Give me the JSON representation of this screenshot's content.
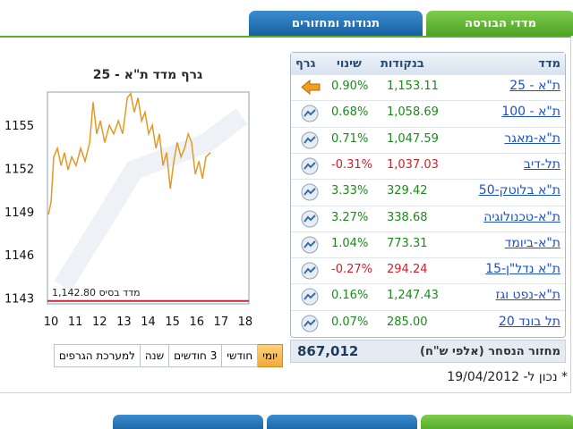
{
  "tabs": [
    "מדדי הבורסה",
    "תנודות ומחזורים"
  ],
  "chart": {
    "title": "גרף מדד ת\"א - 25",
    "yticks": [
      1155,
      1152,
      1149,
      1146,
      1143
    ],
    "ylim": [
      1142.6,
      1157.3
    ],
    "xticks": [
      10,
      11,
      12,
      13,
      14,
      15,
      16,
      17,
      18
    ],
    "xlim": [
      9.85,
      18.15
    ],
    "x": [
      9.89,
      10.0,
      10.11,
      10.26,
      10.41,
      10.55,
      10.7,
      10.85,
      11.03,
      11.22,
      11.4,
      11.59,
      11.73,
      11.88,
      12.03,
      12.21,
      12.4,
      12.58,
      12.77,
      12.95,
      13.14,
      13.28,
      13.43,
      13.58,
      13.73,
      13.87,
      14.02,
      14.17,
      14.32,
      14.46,
      14.61,
      14.76,
      14.91,
      15.06,
      15.2,
      15.35,
      15.5,
      15.65,
      15.79,
      15.94,
      16.09,
      16.24,
      16.38,
      16.57
    ],
    "values": [
      1148.8,
      1149.7,
      1152.8,
      1153.4,
      1152.2,
      1153.1,
      1151.9,
      1152.8,
      1152.2,
      1153.4,
      1152.5,
      1153.8,
      1156.6,
      1154.4,
      1155.3,
      1153.8,
      1155.0,
      1154.4,
      1155.3,
      1154.4,
      1156.9,
      1157.2,
      1155.9,
      1156.9,
      1155.3,
      1155.9,
      1154.4,
      1155.0,
      1153.4,
      1154.4,
      1152.2,
      1153.1,
      1150.6,
      1152.5,
      1153.8,
      1152.8,
      1153.4,
      1154.4,
      1153.8,
      1151.6,
      1152.5,
      1151.3,
      1152.8,
      1153.1
    ],
    "color": "#e39a22",
    "base": {
      "label": "מדד בסיס",
      "value": 1142.8,
      "value_label": "1,142.80"
    }
  },
  "range_buttons": [
    "יומי",
    "חודשי",
    "3 חודשים",
    "שנה",
    "למערכת הגרפים"
  ],
  "table": {
    "headers": [
      "מדד",
      "בנקודות",
      "שינוי",
      "גרף"
    ],
    "rows": [
      [
        "ת\"א - 25",
        "1,153.11",
        "0.90%"
      ],
      [
        "ת\"א - 100",
        "1,058.69",
        "0.68%"
      ],
      [
        "ת\"א-מאגר",
        "1,047.59",
        "0.71%"
      ],
      [
        "תל-דיב",
        "1,037.03",
        "-0.31%"
      ],
      [
        "ת\"א בלוטק-50",
        "329.42",
        "3.33%"
      ],
      [
        "ת\"א-טכנולוגיה",
        "338.68",
        "3.27%"
      ],
      [
        "ת\"א-ביומד",
        "773.31",
        "1.04%"
      ],
      [
        "ת\"א נדל\"ן-15",
        "294.24",
        "-0.27%"
      ],
      [
        "ת\"א-נפט וגז",
        "1,247.43",
        "0.16%"
      ],
      [
        "תל בונד 20",
        "285.00",
        "0.07%"
      ]
    ],
    "footer": {
      "label": "מחזור הנסחר (אלפי ש\"ח)",
      "value": "867,012"
    }
  },
  "note": "* נכון ל- 19/04/2012"
}
